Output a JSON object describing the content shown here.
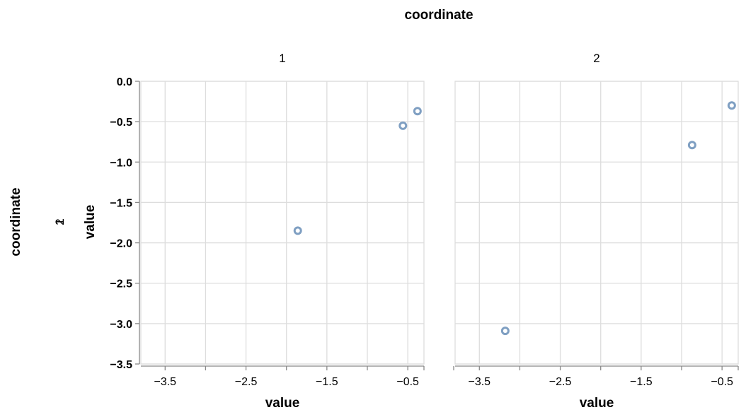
{
  "chart_data": {
    "type": "scatter",
    "column_facet_title": "coordinate",
    "row_facet_title": "coordinate",
    "row_facet_labels": [
      "1",
      "2"
    ],
    "x_title": "value",
    "y_title": "value",
    "x_domain": [
      -3.8,
      -0.3
    ],
    "y_domain": [
      -3.5,
      0.0
    ],
    "x_ticks": [
      -3.5,
      -3.0,
      -2.5,
      -2.0,
      -1.5,
      -1.0,
      -0.5
    ],
    "x_tick_labels": [
      "−3.5",
      "−2.5",
      "−1.5",
      "−0.5"
    ],
    "x_tick_label_values": [
      -3.5,
      -2.5,
      -1.5,
      -0.5
    ],
    "y_ticks": [
      0.0,
      -0.5,
      -1.0,
      -1.5,
      -2.0,
      -2.5,
      -3.0,
      -3.5
    ],
    "y_tick_labels": [
      "0.0",
      "−0.5",
      "−1.0",
      "−1.5",
      "−2.0",
      "−2.5",
      "−3.0",
      "−3.5"
    ],
    "grid": true,
    "mark_color": "#7f9fc2",
    "panels": [
      {
        "header": "1",
        "points": [
          {
            "x": -1.86,
            "y": -1.85
          },
          {
            "x": -0.56,
            "y": -0.55
          },
          {
            "x": -0.38,
            "y": -0.37
          }
        ]
      },
      {
        "header": "2",
        "points": [
          {
            "x": -3.18,
            "y": -3.09
          },
          {
            "x": -0.87,
            "y": -0.79
          },
          {
            "x": -0.38,
            "y": -0.3
          }
        ]
      }
    ]
  }
}
